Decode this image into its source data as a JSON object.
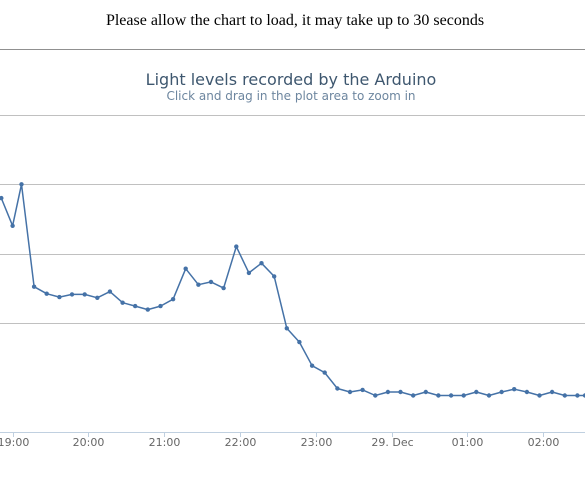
{
  "notice": "Please allow the chart to load, it may take up to 30 seconds",
  "colors": {
    "series": "#4572a7",
    "title": "#3e576f",
    "subtitle": "#6d869f",
    "grid": "#c0c0c0",
    "axis": "#c0d0e0",
    "tick_label": "#666666",
    "frame": "#909090"
  },
  "chart_data": {
    "type": "line",
    "title": "Light levels recorded by the Arduino",
    "subtitle": "Click and drag in the plot area to zoom in",
    "xlabel": "",
    "ylabel": "",
    "grid": true,
    "legend": "none",
    "x_axis": {
      "kind": "datetime",
      "tick_labels": [
        "19:00",
        "20:00",
        "21:00",
        "22:00",
        "23:00",
        "29. Dec",
        "01:00",
        "02:00"
      ],
      "tick_times": [
        "19:00",
        "20:00",
        "21:00",
        "22:00",
        "23:00",
        "00:00",
        "01:00",
        "02:00"
      ],
      "range": [
        "18:50",
        "02:33"
      ]
    },
    "y_axis": {
      "range": [
        0,
        400
      ],
      "gridlines": [
        100,
        200,
        300,
        400
      ],
      "tick_labels_visible": false
    },
    "series": [
      {
        "x": [
          "18:51",
          "19:00",
          "19:07",
          "19:17",
          "19:27",
          "19:37",
          "19:47",
          "19:57",
          "20:07",
          "20:17",
          "20:27",
          "20:37",
          "20:47",
          "20:57",
          "21:07",
          "21:17",
          "21:27",
          "21:37",
          "21:47",
          "21:57",
          "22:07",
          "22:17",
          "22:27",
          "22:37",
          "22:47",
          "22:57",
          "23:07",
          "23:17",
          "23:27",
          "23:37",
          "23:47",
          "23:57",
          "00:07",
          "00:17",
          "00:27",
          "00:37",
          "00:47",
          "00:57",
          "01:07",
          "01:17",
          "01:27",
          "01:37",
          "01:47",
          "01:57",
          "02:07",
          "02:17",
          "02:27",
          "02:33"
        ],
        "y": [
          280,
          240,
          300,
          152,
          142,
          137,
          141,
          141,
          136,
          145,
          129,
          124,
          119,
          124,
          134,
          178,
          155,
          159,
          150,
          210,
          172,
          186,
          167,
          92,
          72,
          38,
          28,
          5,
          0,
          3,
          -5,
          0,
          0,
          -5,
          0,
          -5,
          -5,
          -5,
          0,
          -5,
          0,
          4,
          0,
          -5,
          0,
          -5,
          -5,
          -5
        ]
      }
    ]
  }
}
